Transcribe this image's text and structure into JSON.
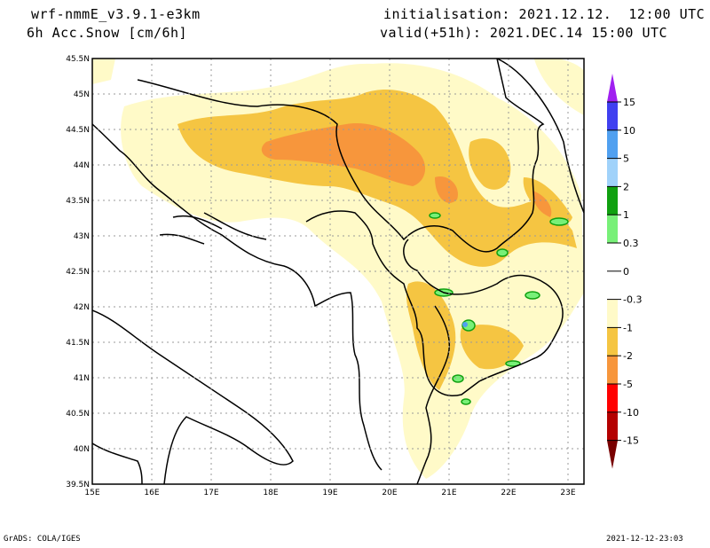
{
  "header": {
    "model": "wrf-nmmE_v3.9.1-e3km",
    "variable": "6h Acc.Snow [cm/6h]",
    "initialisation": "initialisation: 2021.12.12.  12:00 UTC",
    "valid": "valid(+51h): 2021.DEC.14 15:00 UTC"
  },
  "footer": {
    "credit": "GrADS: COLA/IGES",
    "timestamp": "2021-12-12-23:03"
  },
  "map": {
    "lon_range": [
      15,
      23.3
    ],
    "lat_range": [
      39.5,
      45.5
    ],
    "lon_ticks": [
      {
        "v": 15,
        "label": "15E"
      },
      {
        "v": 16,
        "label": "16E"
      },
      {
        "v": 17,
        "label": "17E"
      },
      {
        "v": 18,
        "label": "18E"
      },
      {
        "v": 19,
        "label": "19E"
      },
      {
        "v": 20,
        "label": "20E"
      },
      {
        "v": 21,
        "label": "21E"
      },
      {
        "v": 22,
        "label": "22E"
      },
      {
        "v": 23,
        "label": "23E"
      }
    ],
    "lat_ticks": [
      {
        "v": 39.5,
        "label": "39.5N"
      },
      {
        "v": 40,
        "label": "40N"
      },
      {
        "v": 40.5,
        "label": "40.5N"
      },
      {
        "v": 41,
        "label": "41N"
      },
      {
        "v": 41.5,
        "label": "41.5N"
      },
      {
        "v": 42,
        "label": "42N"
      },
      {
        "v": 42.5,
        "label": "42.5N"
      },
      {
        "v": 43,
        "label": "43N"
      },
      {
        "v": 43.5,
        "label": "43.5N"
      },
      {
        "v": 44,
        "label": "44N"
      },
      {
        "v": 44.5,
        "label": "44.5N"
      },
      {
        "v": 45,
        "label": "45N"
      },
      {
        "v": 45.5,
        "label": "45.5N"
      }
    ]
  },
  "colorbar": {
    "labels": [
      "15",
      "10",
      "5",
      "2",
      "1",
      "0.3",
      "0",
      "-0.3",
      "-1",
      "-2",
      "-5",
      "-10",
      "-15"
    ],
    "segments": [
      {
        "from": "10",
        "to": "15",
        "color": "#4040f0"
      },
      {
        "from": "5",
        "to": "10",
        "color": "#50a0f0"
      },
      {
        "from": "2",
        "to": "5",
        "color": "#a0d2fa"
      },
      {
        "from": "1",
        "to": "2",
        "color": "#10a010"
      },
      {
        "from": "0.3",
        "to": "1",
        "color": "#78f078"
      },
      {
        "from": "0",
        "to": "0.3",
        "color": "#ffffff"
      },
      {
        "from": "-0.3",
        "to": "0",
        "color": "#ffffff"
      },
      {
        "from": "-1",
        "to": "-0.3",
        "color": "#fffac8"
      },
      {
        "from": "-2",
        "to": "-1",
        "color": "#f5c542"
      },
      {
        "from": "-5",
        "to": "-2",
        "color": "#f7963c"
      },
      {
        "from": "-10",
        "to": "-5",
        "color": "#ff0000"
      },
      {
        "from": "-15",
        "to": "-10",
        "color": "#b40000"
      }
    ],
    "top_arrow_color": "#a020f0",
    "bottom_arrow_color": "#780000"
  }
}
